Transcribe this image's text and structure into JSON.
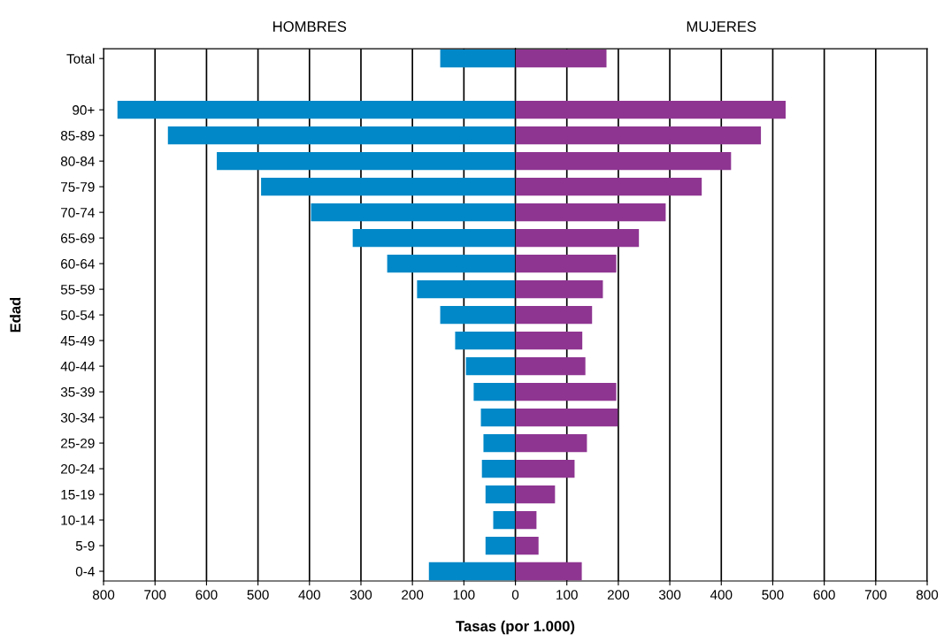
{
  "chart_data": [
    {
      "type": "bar",
      "orientation": "horizontal",
      "title": "HOMBRES",
      "xlabel": "Tasas (por 1.000)",
      "ylabel": "Edad",
      "categories": [
        "Total",
        null,
        "90+",
        "85-89",
        "80-84",
        "75-79",
        "70-74",
        "65-69",
        "60-64",
        "55-59",
        "50-54",
        "45-49",
        "40-44",
        "35-39",
        "30-34",
        "25-29",
        "20-24",
        "15-19",
        "10-14",
        "5-9",
        "0-4"
      ],
      "series": [
        {
          "color": "#0088c8",
          "values": [
            146,
            null,
            773,
            675,
            580,
            494,
            397,
            316,
            249,
            191,
            146,
            117,
            96,
            81,
            67,
            62,
            65,
            58,
            43,
            58,
            168
          ]
        }
      ],
      "xlim": [
        800,
        0
      ],
      "xticks": [
        800,
        700,
        600,
        500,
        400,
        300,
        200,
        100,
        {
          "value": 0,
          "label": null
        }
      ],
      "grid": "x"
    },
    {
      "type": "bar",
      "orientation": "horizontal",
      "title": "MUJERES",
      "series": [
        {
          "color": "#8e3591",
          "values": [
            177,
            null,
            525,
            477,
            419,
            362,
            292,
            240,
            196,
            170,
            149,
            130,
            136,
            196,
            199,
            139,
            115,
            77,
            41,
            45,
            129
          ]
        }
      ],
      "xlim": [
        0,
        800
      ],
      "xticks": [
        0,
        100,
        200,
        300,
        400,
        500,
        600,
        700,
        800
      ],
      "tick_labels": "x",
      "grid": "x"
    }
  ]
}
